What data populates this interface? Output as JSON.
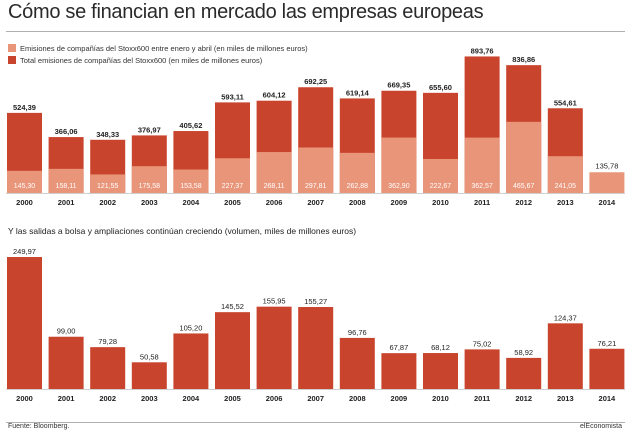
{
  "title": "Cómo se financian en mercado las empresas europeas",
  "colors": {
    "dark": "#c9442d",
    "light": "#e8957a",
    "axis": "#cfcfcf"
  },
  "chart_data": [
    {
      "type": "bar",
      "categories": [
        "2000",
        "2001",
        "2002",
        "2003",
        "2004",
        "2005",
        "2006",
        "2007",
        "2008",
        "2009",
        "2010",
        "2011",
        "2012",
        "2013",
        "2014"
      ],
      "series": [
        {
          "name": "Total emisiones de compañías del Stoxx600 (en miles de millones euros)",
          "color": "#c9442d",
          "values": [
            524.39,
            366.06,
            348.33,
            376.97,
            405.62,
            593.11,
            604.12,
            692.25,
            619.14,
            669.35,
            655.6,
            893.76,
            836.86,
            554.61,
            null
          ],
          "labels": [
            "524,39",
            "366,06",
            "348,33",
            "376,97",
            "405,62",
            "593,11",
            "604,12",
            "692,25",
            "619,14",
            "669,35",
            "655,60",
            "893,76",
            "836,86",
            "554,61",
            ""
          ]
        },
        {
          "name": "Emisiones de compañías del Stoxx600 entre enero y abril (en miles de millones euros)",
          "color": "#e8957a",
          "values": [
            145.3,
            158.11,
            121.55,
            175.58,
            153.58,
            227.37,
            268.11,
            297.81,
            262.88,
            362.9,
            222.67,
            362.57,
            465.67,
            241.05,
            135.78
          ],
          "labels": [
            "145,30",
            "158,11",
            "121,55",
            "175,58",
            "153,58",
            "227,37",
            "268,11",
            "297,81",
            "262,88",
            "362,90",
            "222,67",
            "362,57",
            "465,67",
            "241,05",
            "135,78"
          ]
        }
      ],
      "legend_position": "top-left",
      "ylim": [
        0,
        900
      ]
    },
    {
      "type": "bar",
      "title": "Y las salidas a bolsa y ampliaciones continúan creciendo (volumen, miles de millones euros)",
      "categories": [
        "2000",
        "2001",
        "2002",
        "2003",
        "2004",
        "2005",
        "2006",
        "2007",
        "2008",
        "2009",
        "2010",
        "2011",
        "2012",
        "2013",
        "2014"
      ],
      "values": [
        249.97,
        99.0,
        79.28,
        50.58,
        105.2,
        145.52,
        155.95,
        155.27,
        96.76,
        67.87,
        68.12,
        75.02,
        58.92,
        124.37,
        76.21
      ],
      "labels": [
        "249,97",
        "99,00",
        "79,28",
        "50,58",
        "105,20",
        "145,52",
        "155,95",
        "155,27",
        "96,76",
        "67,87",
        "68,12",
        "75,02",
        "58,92",
        "124,37",
        "76,21"
      ],
      "ylim": [
        0,
        250
      ]
    }
  ],
  "source": "Fuente: Bloomberg.",
  "brand": "elEconomista"
}
